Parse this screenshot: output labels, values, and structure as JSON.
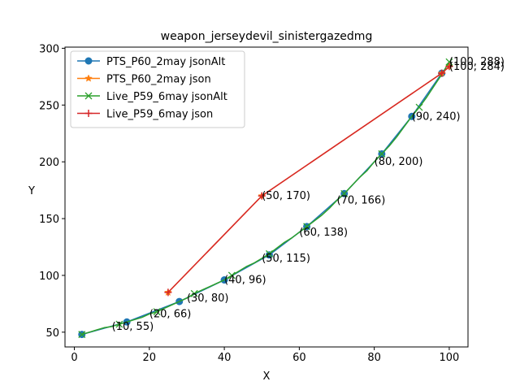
{
  "chart_data": {
    "type": "line",
    "title": "weapon_jerseydevil_sinistergazedmg",
    "xlabel": "X",
    "ylabel": "Y",
    "xlim": [
      -2.5,
      105
    ],
    "ylim": [
      37,
      301
    ],
    "xticks": [
      0,
      20,
      40,
      60,
      80,
      100
    ],
    "yticks": [
      50,
      100,
      150,
      200,
      250,
      300
    ],
    "grid": false,
    "legend_position": "top-left",
    "series": [
      {
        "name": "PTS_P60_2may jsonAlt",
        "color": "#1f77b4",
        "marker": "circle",
        "x": [
          2,
          14,
          28,
          40,
          52,
          62,
          72,
          82,
          90,
          98
        ],
        "y": [
          48,
          59,
          77,
          96,
          118,
          143,
          172,
          207,
          240,
          278
        ]
      },
      {
        "name": "PTS_P60_2may json",
        "color": "#ff7f0e",
        "marker": "star",
        "x": [
          25,
          50,
          98,
          100
        ],
        "y": [
          85,
          170,
          278,
          284
        ]
      },
      {
        "name": "Live_P59_6may jsonAlt",
        "color": "#2ca02c",
        "marker": "x",
        "x": [
          2,
          4,
          6,
          8,
          10,
          12,
          14,
          16,
          18,
          20,
          22,
          24,
          26,
          28,
          30,
          32,
          34,
          36,
          38,
          40,
          42,
          44,
          46,
          48,
          50,
          52,
          54,
          56,
          58,
          60,
          62,
          64,
          66,
          68,
          70,
          72,
          74,
          76,
          78,
          80,
          82,
          84,
          86,
          88,
          90,
          92,
          94,
          96,
          98,
          100
        ],
        "y": [
          48,
          50,
          52,
          54,
          55,
          57,
          59,
          61,
          63,
          66,
          68,
          71,
          74,
          77,
          80,
          84,
          87,
          90,
          93,
          96,
          100,
          104,
          108,
          111,
          115,
          119,
          124,
          129,
          133,
          138,
          143,
          148,
          153,
          159,
          166,
          172,
          179,
          186,
          192,
          200,
          207,
          214,
          222,
          231,
          240,
          248,
          257,
          267,
          277,
          288
        ]
      },
      {
        "name": "Live_P59_6may json",
        "color": "#d62728",
        "marker": "plus",
        "x": [
          25,
          50,
          98,
          100
        ],
        "y": [
          85,
          170,
          278,
          284
        ]
      }
    ],
    "annotations": [
      {
        "text": "(10, 55)",
        "x": 10,
        "y": 55
      },
      {
        "text": "(20, 66)",
        "x": 20,
        "y": 66
      },
      {
        "text": "(30, 80)",
        "x": 30,
        "y": 80
      },
      {
        "text": "(40, 96)",
        "x": 40,
        "y": 96
      },
      {
        "text": "(50, 115)",
        "x": 50,
        "y": 115
      },
      {
        "text": "(50, 170)",
        "x": 50,
        "y": 170
      },
      {
        "text": "(60, 138)",
        "x": 60,
        "y": 138
      },
      {
        "text": "(70, 166)",
        "x": 70,
        "y": 166
      },
      {
        "text": "(80, 200)",
        "x": 80,
        "y": 200
      },
      {
        "text": "(90, 240)",
        "x": 90,
        "y": 240
      },
      {
        "text": "(100, 284)",
        "x": 100,
        "y": 284
      },
      {
        "text": "(100, 288)",
        "x": 100,
        "y": 288
      }
    ]
  }
}
